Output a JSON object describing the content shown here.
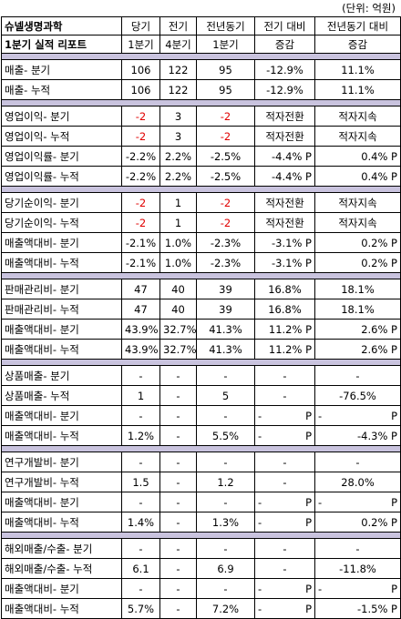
{
  "unit_label": "(단위: 억원)",
  "header": {
    "title_line1": "슈넬생명과학",
    "title_line2": "1분기 실적 리포트",
    "cols": [
      {
        "line1": "당기",
        "line2": "1분기"
      },
      {
        "line1": "전기",
        "line2": "4분기"
      },
      {
        "line1": "전년동기",
        "line2": "1분기"
      },
      {
        "line1": "전기 대비",
        "line2": "증감"
      },
      {
        "line1": "전년동기 대비",
        "line2": "증감"
      }
    ]
  },
  "groups": [
    {
      "rows": [
        {
          "label": "매출- 분기",
          "cells": [
            "106",
            "122",
            "95",
            "-12.9%",
            "11.1%"
          ]
        },
        {
          "label": "매출- 누적",
          "cells": [
            "106",
            "122",
            "95",
            "-12.9%",
            "11.1%"
          ]
        }
      ]
    },
    {
      "rows": [
        {
          "label": "영업이익- 분기",
          "cells": [
            "-2",
            "3",
            "-2",
            "적자전환",
            "적자지속"
          ]
        },
        {
          "label": "영업이익- 누적",
          "cells": [
            "-2",
            "3",
            "-2",
            "적자전환",
            "적자지속"
          ]
        },
        {
          "label": "영업이익률- 분기",
          "cells": [
            "-2.2%",
            "2.2%",
            "-2.5%",
            "-4.4% P",
            "0.4% P"
          ]
        },
        {
          "label": "영업이익률- 누적",
          "cells": [
            "-2.2%",
            "2.2%",
            "-2.5%",
            "-4.4% P",
            "0.4% P"
          ]
        }
      ]
    },
    {
      "rows": [
        {
          "label": "당기순이익- 분기",
          "cells": [
            "-2",
            "1",
            "-2",
            "적자전환",
            "적자지속"
          ]
        },
        {
          "label": "당기순이익- 누적",
          "cells": [
            "-2",
            "1",
            "-2",
            "적자전환",
            "적자지속"
          ]
        },
        {
          "label": "매출액대비- 분기",
          "cells": [
            "-2.1%",
            "1.0%",
            "-2.3%",
            "-3.1% P",
            "0.2% P"
          ]
        },
        {
          "label": "매출액대비- 누적",
          "cells": [
            "-2.1%",
            "1.0%",
            "-2.3%",
            "-3.1% P",
            "0.2% P"
          ]
        }
      ]
    },
    {
      "rows": [
        {
          "label": "판매관리비- 분기",
          "cells": [
            "47",
            "40",
            "39",
            "16.8%",
            "18.1%"
          ]
        },
        {
          "label": "판매관리비- 누적",
          "cells": [
            "47",
            "40",
            "39",
            "16.8%",
            "18.1%"
          ]
        },
        {
          "label": "매출액대비- 분기",
          "cells": [
            "43.9%",
            "32.7%",
            "41.3%",
            "11.2% P",
            "2.6% P"
          ]
        },
        {
          "label": "매출액대비- 누적",
          "cells": [
            "43.9%",
            "32.7%",
            "41.3%",
            "11.2% P",
            "2.6% P"
          ]
        }
      ]
    },
    {
      "rows": [
        {
          "label": "상품매출- 분기",
          "cells": [
            "-",
            "-",
            "-",
            "-",
            "-"
          ]
        },
        {
          "label": "상품매출- 누적",
          "cells": [
            "1",
            "-",
            "5",
            "-",
            "-76.5%"
          ]
        },
        {
          "label": "매출액대비- 분기",
          "cells": [
            "-",
            "-",
            "-",
            "- P",
            "- P"
          ]
        },
        {
          "label": "매출액대비- 누적",
          "cells": [
            "1.2%",
            "-",
            "5.5%",
            "- P",
            "-4.3% P"
          ]
        }
      ]
    },
    {
      "rows": [
        {
          "label": "연구개발비- 분기",
          "cells": [
            "-",
            "-",
            "-",
            "-",
            "-"
          ]
        },
        {
          "label": "연구개발비- 누적",
          "cells": [
            "1.5",
            "-",
            "1.2",
            "-",
            "28.0%"
          ]
        },
        {
          "label": "매출액대비- 분기",
          "cells": [
            "-",
            "-",
            "-",
            "- P",
            "- P"
          ]
        },
        {
          "label": "매출액대비- 누적",
          "cells": [
            "1.4%",
            "-",
            "1.3%",
            "- P",
            "0.2% P"
          ]
        }
      ]
    },
    {
      "rows": [
        {
          "label": "해외매출/수출- 분기",
          "cells": [
            "-",
            "-",
            "-",
            "-",
            "-"
          ]
        },
        {
          "label": "해외매출/수출- 누적",
          "cells": [
            "6.1",
            "-",
            "6.9",
            "-",
            "-11.8%"
          ]
        },
        {
          "label": "매출액대비- 분기",
          "cells": [
            "-",
            "-",
            "-",
            "- P",
            "- P"
          ]
        },
        {
          "label": "매출액대비- 누적",
          "cells": [
            "5.7%",
            "-",
            "7.2%",
            "- P",
            "-1.5% P"
          ]
        }
      ]
    }
  ]
}
